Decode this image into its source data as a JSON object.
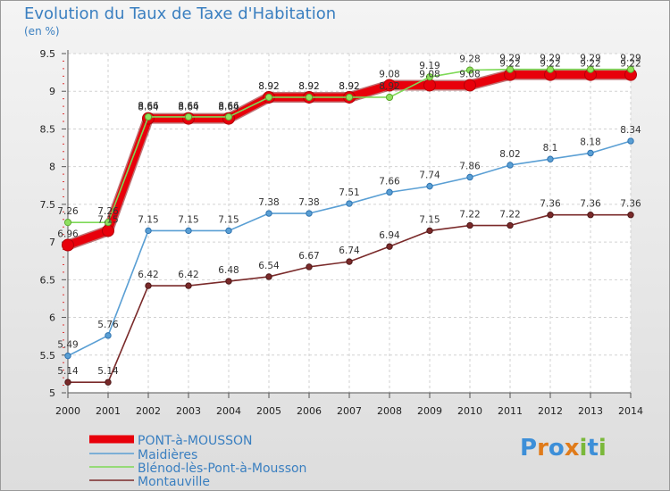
{
  "header": {
    "title": "Evolution du Taux de Taxe d'Habitation",
    "unit": "(en %)"
  },
  "brand": {
    "text": "Proxiti",
    "letter_colors": [
      "#3d8fd8",
      "#e07b1a",
      "#3d8fd8",
      "#e07b1a",
      "#7ab83a",
      "#3d8fd8",
      "#7ab83a"
    ]
  },
  "chart_data": {
    "type": "line",
    "x": [
      "2000",
      "2001",
      "2002",
      "2003",
      "2004",
      "2005",
      "2006",
      "2007",
      "2008",
      "2009",
      "2010",
      "2011",
      "2012",
      "2013",
      "2014"
    ],
    "ylim": [
      5,
      9.5
    ],
    "yticks": [
      "5",
      "5.5",
      "6",
      "6.5",
      "7",
      "7.5",
      "8",
      "8.5",
      "9",
      "9.5"
    ],
    "grid": true,
    "legend_position": "bottom-left",
    "series": [
      {
        "name": "PONT-à-MOUSSON",
        "color": "#e8000b",
        "values": [
          6.96,
          7.15,
          8.64,
          8.64,
          8.64,
          8.92,
          8.92,
          8.92,
          9.08,
          9.08,
          9.08,
          9.22,
          9.22,
          9.22,
          9.22
        ],
        "labels": [
          "6.96",
          "7.15",
          "8.64",
          "8.64",
          "8.64",
          "8.92",
          "8.92",
          "8.92",
          "9.08",
          "9.08",
          "9.08",
          "9.22",
          "9.22",
          "9.22",
          "9.22"
        ]
      },
      {
        "name": "Maidières",
        "color": "#5a9fd4",
        "values": [
          5.49,
          5.76,
          7.15,
          7.15,
          7.15,
          7.38,
          7.38,
          7.51,
          7.66,
          7.74,
          7.86,
          8.02,
          8.1,
          8.18,
          8.34
        ],
        "labels": [
          "5.49",
          "5.76",
          "7.15",
          "7.15",
          "7.15",
          "7.38",
          "7.38",
          "7.51",
          "7.66",
          "7.74",
          "7.86",
          "8.02",
          "8.1",
          "8.18",
          "8.34"
        ]
      },
      {
        "name": "Blénod-lès-Pont-à-Mousson",
        "color": "#7ed957",
        "values": [
          7.26,
          7.26,
          8.66,
          8.66,
          8.66,
          8.92,
          8.92,
          8.92,
          8.92,
          9.19,
          9.28,
          9.29,
          9.29,
          9.29,
          9.29
        ],
        "labels": [
          "7.26",
          "7.26",
          "8.66",
          "8.66",
          "8.66",
          "8.92",
          "8.92",
          "8.92",
          "8.92",
          "9.19",
          "9.28",
          "9.29",
          "9.29",
          "9.29",
          "9.29"
        ]
      },
      {
        "name": "Montauville",
        "color": "#7a2a2a",
        "values": [
          5.14,
          5.14,
          6.42,
          6.42,
          6.48,
          6.54,
          6.67,
          6.74,
          6.94,
          7.15,
          7.22,
          7.22,
          7.36,
          7.36,
          7.36
        ],
        "labels": [
          "5.14",
          "5.14",
          "6.42",
          "6.42",
          "6.48",
          "6.54",
          "6.67",
          "6.74",
          "6.94",
          "7.15",
          "7.22",
          "7.22",
          "7.36",
          "7.36",
          "7.36"
        ]
      }
    ]
  }
}
